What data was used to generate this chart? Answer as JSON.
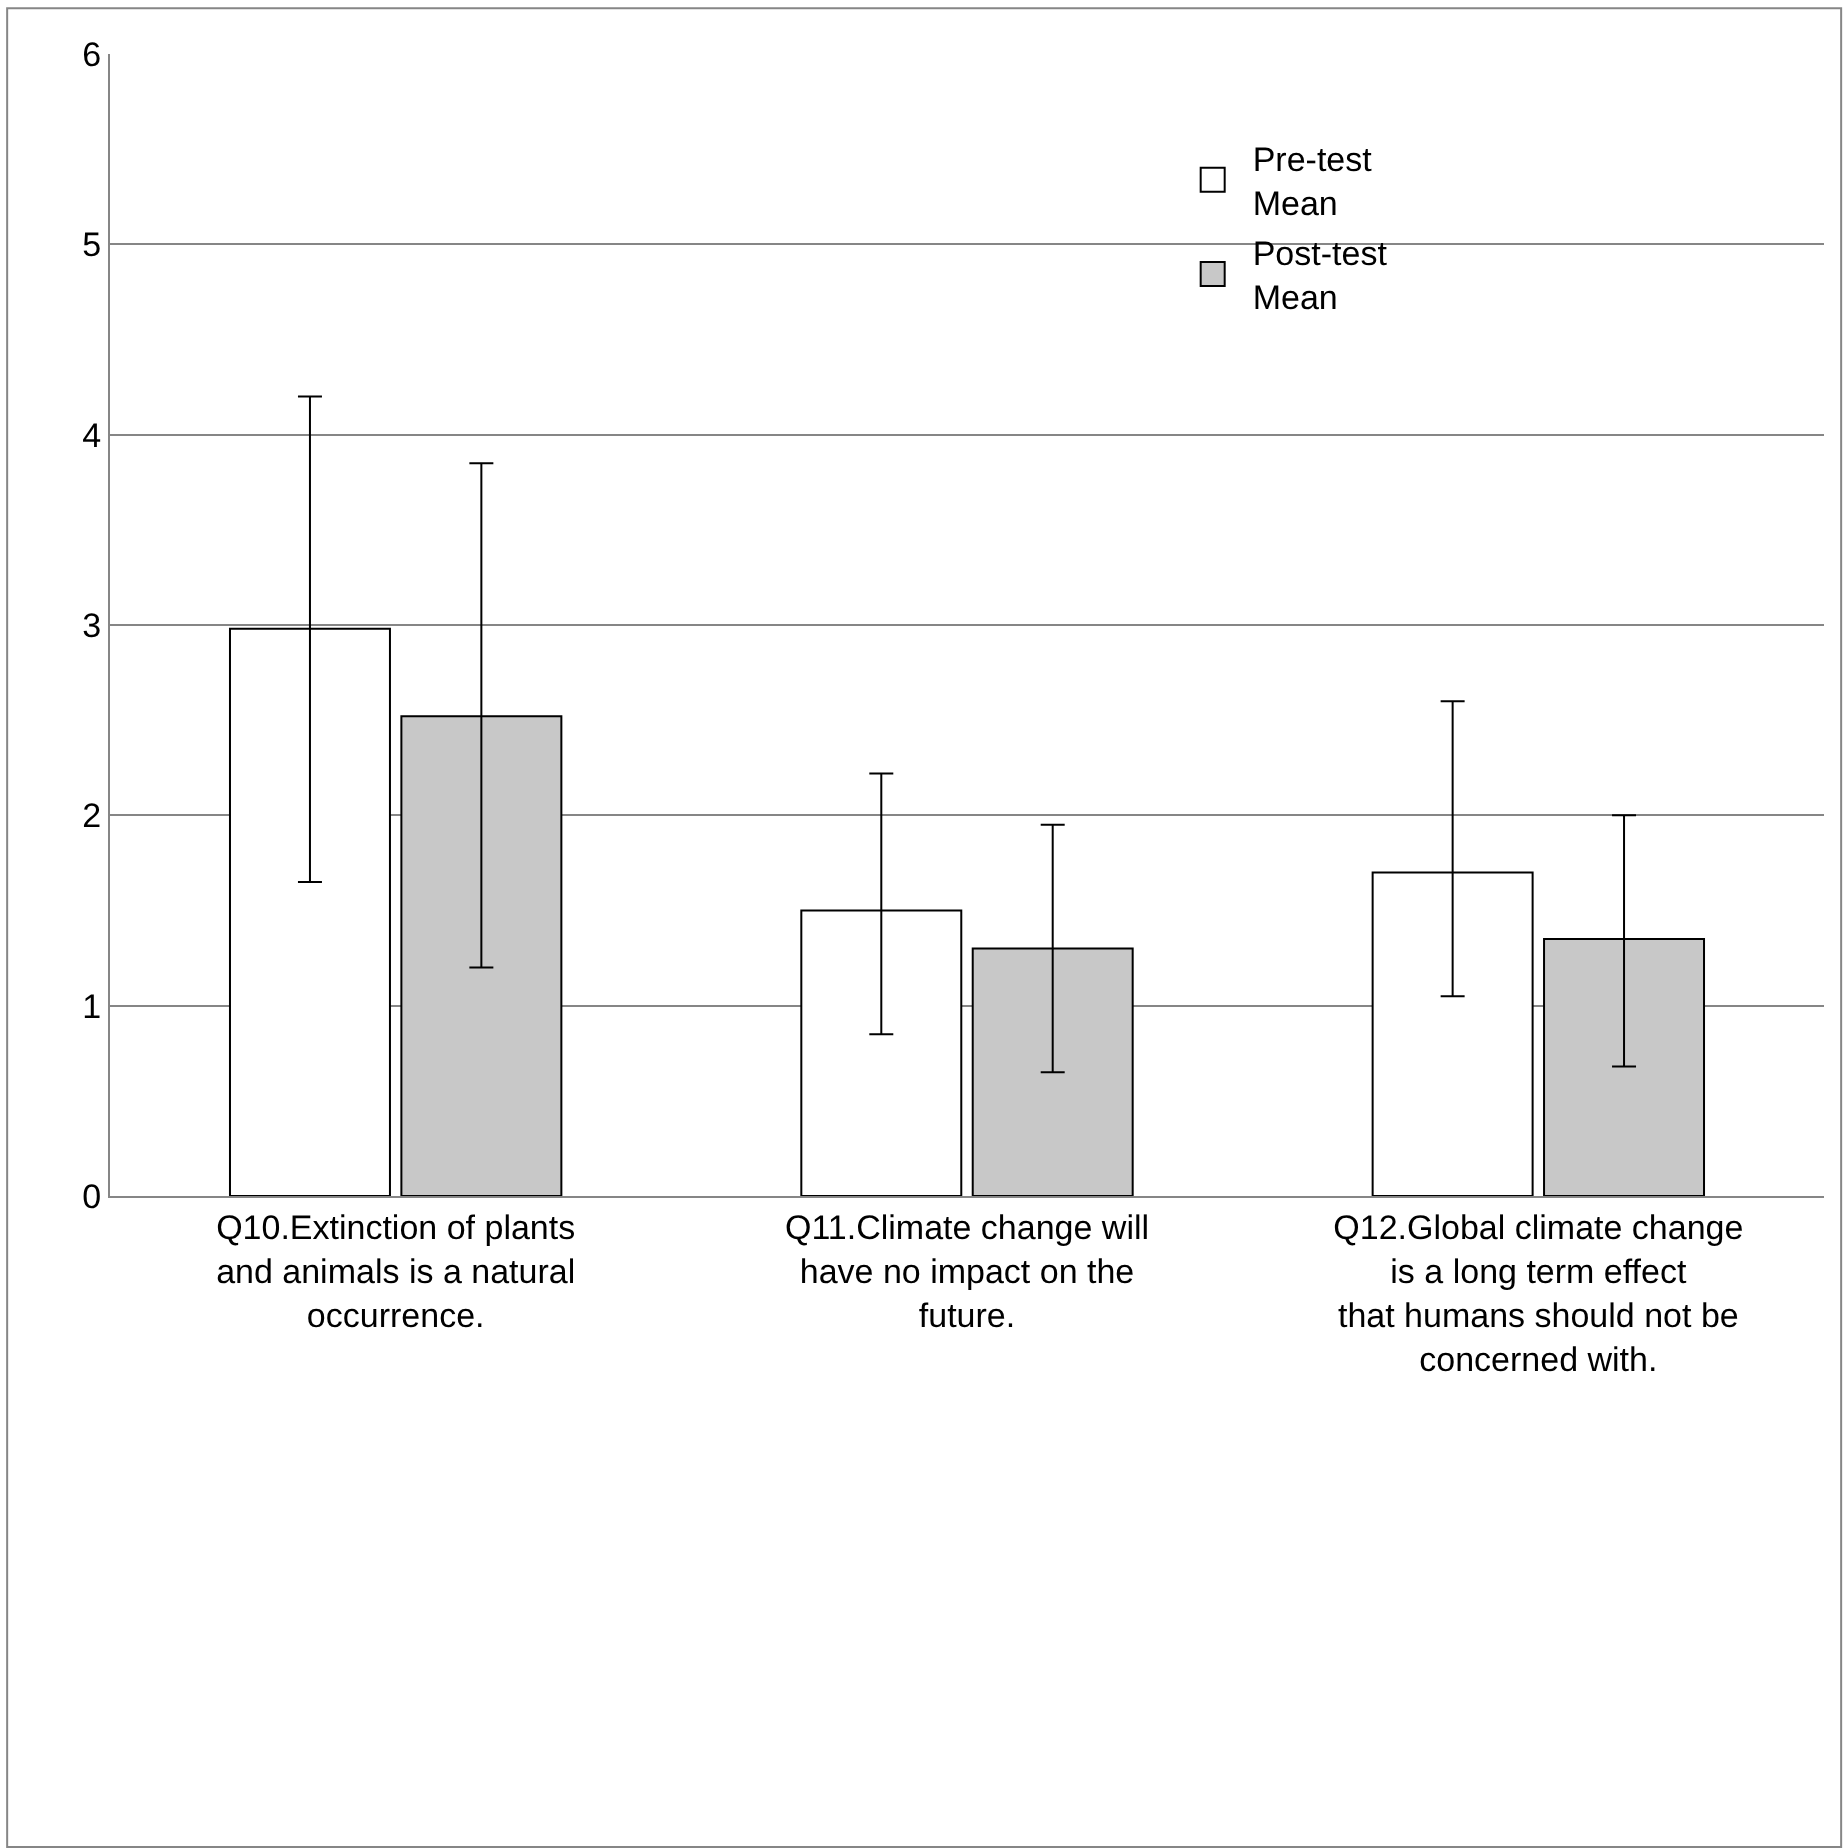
{
  "chart_data": {
    "type": "bar",
    "categories": [
      "Q10.Extinction of plants and animals is a natural occurrence.",
      "Q11.Climate change will have no impact on the future.",
      "Q12.Global climate change is a long term effect that humans should not be concerned with."
    ],
    "series": [
      {
        "name": "Pre-test Mean",
        "color": "#ffffff",
        "values": [
          2.98,
          1.5,
          1.7
        ],
        "errors": [
          [
            1.65,
            4.2
          ],
          [
            0.85,
            2.22
          ],
          [
            1.05,
            2.6
          ]
        ]
      },
      {
        "name": "Post-test Mean",
        "color": "#c8c8c8",
        "values": [
          2.52,
          1.3,
          1.35
        ],
        "errors": [
          [
            1.2,
            3.85
          ],
          [
            0.65,
            1.95
          ],
          [
            0.68,
            2.0
          ]
        ]
      }
    ],
    "ylim": [
      0,
      6
    ],
    "yticks": [
      0,
      1,
      2,
      3,
      4,
      5,
      6
    ],
    "grid": "y",
    "legend": "top right"
  }
}
